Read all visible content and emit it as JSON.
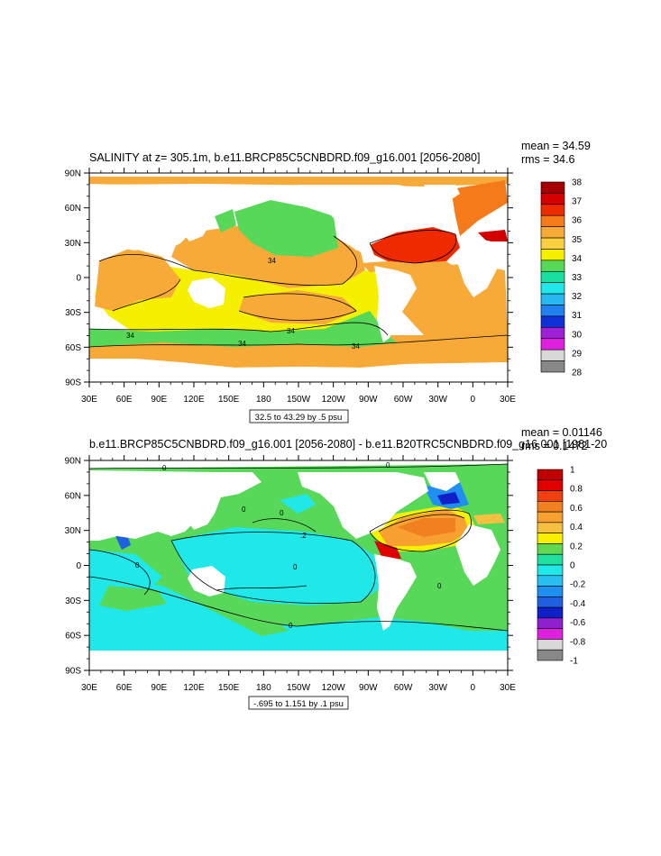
{
  "chart_data": [
    {
      "type": "heatmap",
      "title": "SALINITY at z= 305.1m, b.e11.BRCP85C5CNBDRD.f09_g16.001 [2056-2080]",
      "stats": {
        "mean": "mean = 34.59",
        "rms": "rms = 34.6"
      },
      "x_ticks": [
        "30E",
        "60E",
        "90E",
        "120E",
        "150E",
        "180",
        "150W",
        "120W",
        "90W",
        "60W",
        "30W",
        "0",
        "30E"
      ],
      "y_ticks": [
        "90N",
        "60N",
        "30N",
        "0",
        "30S",
        "60S",
        "90S"
      ],
      "contour_info": "32.5 to 43.29 by .5 psu",
      "contour_labels": [
        "34",
        "34",
        "34",
        "34",
        "34"
      ],
      "colorbar": {
        "labels": [
          "38",
          "37",
          "36",
          "35",
          "34",
          "33",
          "32",
          "31",
          "30",
          "29",
          "28"
        ],
        "colors": [
          "#a50000",
          "#d40000",
          "#f02a00",
          "#f57a1a",
          "#f8aa38",
          "#fbd040",
          "#f5f000",
          "#58d858",
          "#18e0a0",
          "#20e8e8",
          "#28b8f0",
          "#2080f0",
          "#1030d8",
          "#a020d8",
          "#e020e0",
          "#d8d8d8",
          "#888888"
        ]
      }
    },
    {
      "type": "heatmap",
      "title": "b.e11.BRCP85C5CNBDRD.f09_g16.001 [2056-2080] - b.e11.B20TRC5CNBDRD.f09_g16.001 [1981-20",
      "stats": {
        "mean": "mean = 0.01146",
        "rms": "rms = 0.1472"
      },
      "x_ticks": [
        "30E",
        "60E",
        "90E",
        "120E",
        "150E",
        "180",
        "150W",
        "120W",
        "90W",
        "60W",
        "30W",
        "0",
        "30E"
      ],
      "y_ticks": [
        "90N",
        "60N",
        "30N",
        "0",
        "30S",
        "60S",
        "90S"
      ],
      "contour_info": "-.695 to 1.151 by .1 psu",
      "contour_labels": [
        "0",
        "0",
        "0",
        "0",
        "0",
        "0",
        "0",
        ".2",
        "0"
      ],
      "colorbar": {
        "labels": [
          "1",
          "0.8",
          "0.6",
          "0.4",
          "0.2",
          "0",
          "-0.2",
          "-0.4",
          "-0.6",
          "-0.8",
          "-1"
        ],
        "colors": [
          "#c00000",
          "#e00000",
          "#f04010",
          "#f08020",
          "#f8a030",
          "#f8c040",
          "#f8f000",
          "#60d850",
          "#20e0a0",
          "#20e8e8",
          "#28c0f0",
          "#2090f0",
          "#2060e0",
          "#1020c8",
          "#9020d0",
          "#e020e0",
          "#d8d8d8",
          "#888888"
        ]
      }
    }
  ]
}
